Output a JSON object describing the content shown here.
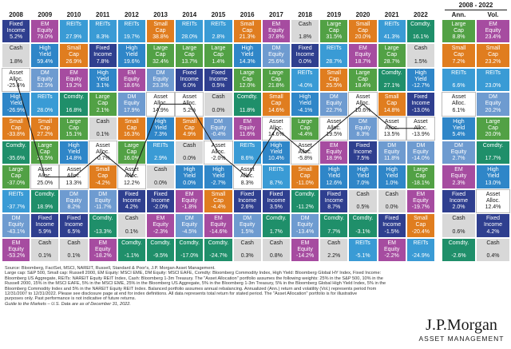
{
  "chart_data": {
    "type": "table",
    "title": "",
    "period_label": "2008 - 2022",
    "years": [
      "2008",
      "2009",
      "2010",
      "2011",
      "2012",
      "2013",
      "2014",
      "2015",
      "2016",
      "2017",
      "2018",
      "2019",
      "2020",
      "2021",
      "2022"
    ],
    "summary_headers": [
      "Ann.",
      "Vol."
    ],
    "colors": {
      "Fixed Income": "#2f3f8f",
      "EM Equity": "#a64ca0",
      "REITs": "#3a9bd5",
      "Small Cap": "#e07d1f",
      "Cash": "#d8d8d8",
      "High Yield": "#2f86c8",
      "DM Equity": "#6e9bd0",
      "Large Cap": "#52a145",
      "Comdty.": "#1f8f6a",
      "Asset Alloc.": "#ffffff"
    },
    "columns": [
      [
        [
          "Fixed Income",
          "5.2%"
        ],
        [
          "Cash",
          "1.8%"
        ],
        [
          "Asset Alloc.",
          "-25.4%"
        ],
        [
          "High Yield",
          "-26.9%"
        ],
        [
          "Small Cap",
          "-33.8%"
        ],
        [
          "Comdty.",
          "-35.6%"
        ],
        [
          "Large Cap",
          "-37.0%"
        ],
        [
          "REITs",
          "-37.7%"
        ],
        [
          "DM Equity",
          "-43.1%"
        ],
        [
          "EM Equity",
          "-53.2%"
        ]
      ],
      [
        [
          "EM Equity",
          "79.0%"
        ],
        [
          "High Yield",
          "59.4%"
        ],
        [
          "DM Equity",
          "32.5%"
        ],
        [
          "REITs",
          "28.0%"
        ],
        [
          "Small Cap",
          "27.2%"
        ],
        [
          "Large Cap",
          "26.5%"
        ],
        [
          "Asset Alloc.",
          "25.0%"
        ],
        [
          "Comdty.",
          "18.9%"
        ],
        [
          "Fixed Income",
          "5.9%"
        ],
        [
          "Cash",
          "0.1%"
        ]
      ],
      [
        [
          "REITs",
          "27.9%"
        ],
        [
          "Small Cap",
          "26.9%"
        ],
        [
          "EM Equity",
          "19.2%"
        ],
        [
          "Comdty.",
          "16.8%"
        ],
        [
          "Large Cap",
          "15.1%"
        ],
        [
          "High Yield",
          "14.8%"
        ],
        [
          "Asset Alloc.",
          "13.3%"
        ],
        [
          "DM Equity",
          "8.2%"
        ],
        [
          "Fixed Income",
          "6.5%"
        ],
        [
          "Cash",
          "0.1%"
        ]
      ],
      [
        [
          "REITs",
          "8.3%"
        ],
        [
          "Fixed Income",
          "7.8%"
        ],
        [
          "High Yield",
          "3.1%"
        ],
        [
          "Large Cap",
          "2.1%"
        ],
        [
          "Cash",
          "0.1%"
        ],
        [
          "Asset Alloc.",
          "-0.7%"
        ],
        [
          "Small Cap",
          "-4.2%"
        ],
        [
          "DM Equity",
          "-11.7%"
        ],
        [
          "Comdty.",
          "-13.3%"
        ],
        [
          "EM Equity",
          "-18.2%"
        ]
      ],
      [
        [
          "REITs",
          "19.7%"
        ],
        [
          "High Yield",
          "19.6%"
        ],
        [
          "EM Equity",
          "18.6%"
        ],
        [
          "DM Equity",
          "17.9%"
        ],
        [
          "Small Cap",
          "16.3%"
        ],
        [
          "Large Cap",
          "16.0%"
        ],
        [
          "Asset Alloc.",
          "12.2%"
        ],
        [
          "Fixed Income",
          "4.2%"
        ],
        [
          "Cash",
          "0.1%"
        ],
        [
          "Comdty.",
          "-1.1%"
        ]
      ],
      [
        [
          "Small Cap",
          "38.8%"
        ],
        [
          "Large Cap",
          "32.4%"
        ],
        [
          "DM Equity",
          "23.3%"
        ],
        [
          "Asset Alloc.",
          "14.9%"
        ],
        [
          "High Yield",
          "7.3%"
        ],
        [
          "REITs",
          "2.9%"
        ],
        [
          "Cash",
          "0.0%"
        ],
        [
          "Fixed Income",
          "-2.0%"
        ],
        [
          "EM Equity",
          "-2.3%"
        ],
        [
          "Comdty.",
          "-9.5%"
        ]
      ],
      [
        [
          "REITs",
          "28.0%"
        ],
        [
          "Large Cap",
          "13.7%"
        ],
        [
          "Fixed Income",
          "6.0%"
        ],
        [
          "Asset Alloc.",
          "5.2%"
        ],
        [
          "Small Cap",
          "4.9%"
        ],
        [
          "Cash",
          "0.0%"
        ],
        [
          "High Yield",
          "0.0%"
        ],
        [
          "EM Equity",
          "-1.8%"
        ],
        [
          "DM Equity",
          "-4.5%"
        ],
        [
          "Comdty.",
          "-17.0%"
        ]
      ],
      [
        [
          "REITs",
          "2.8%"
        ],
        [
          "Large Cap",
          "1.4%"
        ],
        [
          "Fixed Income",
          "0.5%"
        ],
        [
          "Cash",
          "0.0%"
        ],
        [
          "DM Equity",
          "-0.4%"
        ],
        [
          "Asset Alloc.",
          "-2.0%"
        ],
        [
          "High Yield",
          "-2.7%"
        ],
        [
          "Small Cap",
          "-4.4%"
        ],
        [
          "EM Equity",
          "-14.6%"
        ],
        [
          "Comdty.",
          "-24.7%"
        ]
      ],
      [
        [
          "Small Cap",
          "21.3%"
        ],
        [
          "High Yield",
          "14.3%"
        ],
        [
          "Large Cap",
          "12.0%"
        ],
        [
          "Comdty.",
          "11.8%"
        ],
        [
          "EM Equity",
          "11.6%"
        ],
        [
          "REITs",
          "8.6%"
        ],
        [
          "Asset Alloc.",
          "8.3%"
        ],
        [
          "Fixed Income",
          "2.6%"
        ],
        [
          "DM Equity",
          "1.5%"
        ],
        [
          "Cash",
          "0.3%"
        ]
      ],
      [
        [
          "EM Equity",
          "37.8%"
        ],
        [
          "DM Equity",
          "25.6%"
        ],
        [
          "Large Cap",
          "21.8%"
        ],
        [
          "Small Cap",
          "14.6%"
        ],
        [
          "Asset Alloc.",
          "14.6%"
        ],
        [
          "High Yield",
          "10.4%"
        ],
        [
          "REITs",
          "8.7%"
        ],
        [
          "Fixed Income",
          "3.5%"
        ],
        [
          "Comdty.",
          "1.7%"
        ],
        [
          "Cash",
          "0.8%"
        ]
      ],
      [
        [
          "Cash",
          "1.8%"
        ],
        [
          "Fixed Income",
          "0.0%"
        ],
        [
          "REITs",
          "-4.0%"
        ],
        [
          "High Yield",
          "-4.1%"
        ],
        [
          "Large Cap",
          "-4.4%"
        ],
        [
          "Asset Alloc.",
          "-5.8%"
        ],
        [
          "Small Cap",
          "-11.0%"
        ],
        [
          "Comdty.",
          "-11.2%"
        ],
        [
          "DM Equity",
          "-13.4%"
        ],
        [
          "EM Equity",
          "-14.2%"
        ]
      ],
      [
        [
          "Large Cap",
          "31.5%"
        ],
        [
          "REITs",
          "28.7%"
        ],
        [
          "Small Cap",
          "25.5%"
        ],
        [
          "DM Equity",
          "22.7%"
        ],
        [
          "Asset Alloc.",
          "19.5%"
        ],
        [
          "EM Equity",
          "18.9%"
        ],
        [
          "High Yield",
          "12.6%"
        ],
        [
          "Fixed Income",
          "8.7%"
        ],
        [
          "Comdty.",
          "7.7%"
        ],
        [
          "Cash",
          "2.2%"
        ]
      ],
      [
        [
          "Small Cap",
          "20.0%"
        ],
        [
          "EM Equity",
          "18.7%"
        ],
        [
          "Large Cap",
          "18.4%"
        ],
        [
          "Asset Alloc.",
          "10.6%"
        ],
        [
          "DM Equity",
          "8.3%"
        ],
        [
          "Fixed Income",
          "7.5%"
        ],
        [
          "High Yield",
          "7.0%"
        ],
        [
          "Cash",
          "0.5%"
        ],
        [
          "Comdty.",
          "-3.1%"
        ],
        [
          "REITs",
          "-5.1%"
        ]
      ],
      [
        [
          "REITs",
          "41.3%"
        ],
        [
          "Large Cap",
          "28.7%"
        ],
        [
          "Comdty.",
          "27.1%"
        ],
        [
          "Small Cap",
          "14.8%"
        ],
        [
          "Asset Alloc.",
          "13.5%"
        ],
        [
          "DM Equity",
          "11.8%"
        ],
        [
          "High Yield",
          "1.0%"
        ],
        [
          "Cash",
          "0.0%"
        ],
        [
          "Fixed Income",
          "-1.5%"
        ],
        [
          "EM Equity",
          "-2.2%"
        ]
      ],
      [
        [
          "Comdty.",
          "16.1%"
        ],
        [
          "Cash",
          "1.5%"
        ],
        [
          "High Yield",
          "-12.7%"
        ],
        [
          "Fixed Income",
          "-13.0%"
        ],
        [
          "Asset Alloc.",
          "-13.9%"
        ],
        [
          "DM Equity",
          "-14.0%"
        ],
        [
          "Large Cap",
          "-18.1%"
        ],
        [
          "EM Equity",
          "-19.7%"
        ],
        [
          "Small Cap",
          "-20.4%"
        ],
        [
          "REITs",
          "-24.9%"
        ]
      ]
    ],
    "summary": [
      [
        [
          "Large Cap",
          "8.8%"
        ],
        [
          "Small Cap",
          "7.2%"
        ],
        [
          "REITs",
          "6.6%"
        ],
        [
          "Asset Alloc.",
          "6.1%"
        ],
        [
          "High Yield",
          "5.4%"
        ],
        [
          "DM Equity",
          "2.7%"
        ],
        [
          "EM Equity",
          "2.3%"
        ],
        [
          "Fixed Income",
          "2.0%"
        ],
        [
          "Cash",
          "0.6%"
        ],
        [
          "Comdty.",
          "-2.6%"
        ]
      ],
      [
        [
          "EM Equity",
          "23.4%"
        ],
        [
          "Small Cap",
          "23.2%"
        ],
        [
          "REITs",
          "23.0%"
        ],
        [
          "DM Equity",
          "20.2%"
        ],
        [
          "Large Cap",
          "20.0%"
        ],
        [
          "Comdty.",
          "17.7%"
        ],
        [
          "High Yield",
          "13.0%"
        ],
        [
          "Asset Alloc.",
          "12.4%"
        ],
        [
          "Fixed Income",
          "4.2%"
        ],
        [
          "Cash",
          "0.4%"
        ]
      ]
    ]
  },
  "footer": {
    "source_lines": [
      "Source: Bloomberg, FactSet, MSCI, NAREIT, Russell, Standard & Poor's, J.P. Morgan Asset Management.",
      "Large cap: S&P 500, Small cap: Russell 2000, EM Equity: MSCI EME, DM Equity: MSCI EAFE, Comdty: Bloomberg Commodity Index, High Yield: Bloomberg Global HY Index, Fixed Income:",
      "Bloomberg US Aggregate, REITs: NAREIT Equity REIT Index, Cash: Bloomberg 1-3m Treasury. The \"Asset Allocation\" portfolio assumes the following weights: 25% in the S&P 500, 10% in the",
      "Russell 2000, 15% in the MSCI EAFE, 5% in the MSCI EME, 25% in the Bloomberg US Aggregate, 5% in the Bloomberg 1-3m Treasury, 5% in the Bloomberg Global High Yield Index, 5% in the",
      "Bloomberg Commodity Index and 5% in the NAREIT Equity REIT Index. Balanced portfolio assumes annual rebalancing. Annualized (Ann.) return and volatility (Vol.) represents period from",
      "12/31/2007 to 12/31/2022. Please see disclosure page at end for index definitions. All data represents total return for stated period. The \"Asset Allocation\" portfolio is for illustrative",
      "purposes only. Past performance is not indicative of future returns."
    ],
    "guide_line": "Guide to the Markets – U.S. Data are as of December 31, 2022.",
    "logo_brand": "J.P.Morgan",
    "logo_sub": "ASSET MANAGEMENT"
  }
}
